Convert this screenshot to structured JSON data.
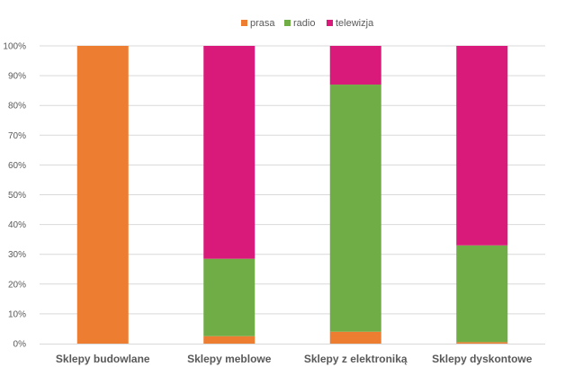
{
  "chart_data": {
    "type": "bar",
    "stacked": true,
    "percent": true,
    "categories": [
      "Sklepy budowlane",
      "Sklepy meblowe",
      "Sklepy z elektroniką",
      "Sklepy dyskontowe"
    ],
    "series": [
      {
        "name": "prasa",
        "color": "#ED7D31",
        "values": [
          100,
          2.5,
          4,
          0.5
        ]
      },
      {
        "name": "radio",
        "color": "#70AD47",
        "values": [
          0,
          26,
          83,
          32.5
        ]
      },
      {
        "name": "telewizja",
        "color": "#DA1A7A",
        "values": [
          0,
          71.5,
          13,
          67
        ]
      }
    ],
    "y_ticks": [
      "0%",
      "10%",
      "20%",
      "30%",
      "40%",
      "50%",
      "60%",
      "70%",
      "80%",
      "90%",
      "100%"
    ],
    "ylim": [
      0,
      100
    ],
    "title": "",
    "xlabel": "",
    "ylabel": "",
    "grid": true,
    "legend_position": "top"
  }
}
